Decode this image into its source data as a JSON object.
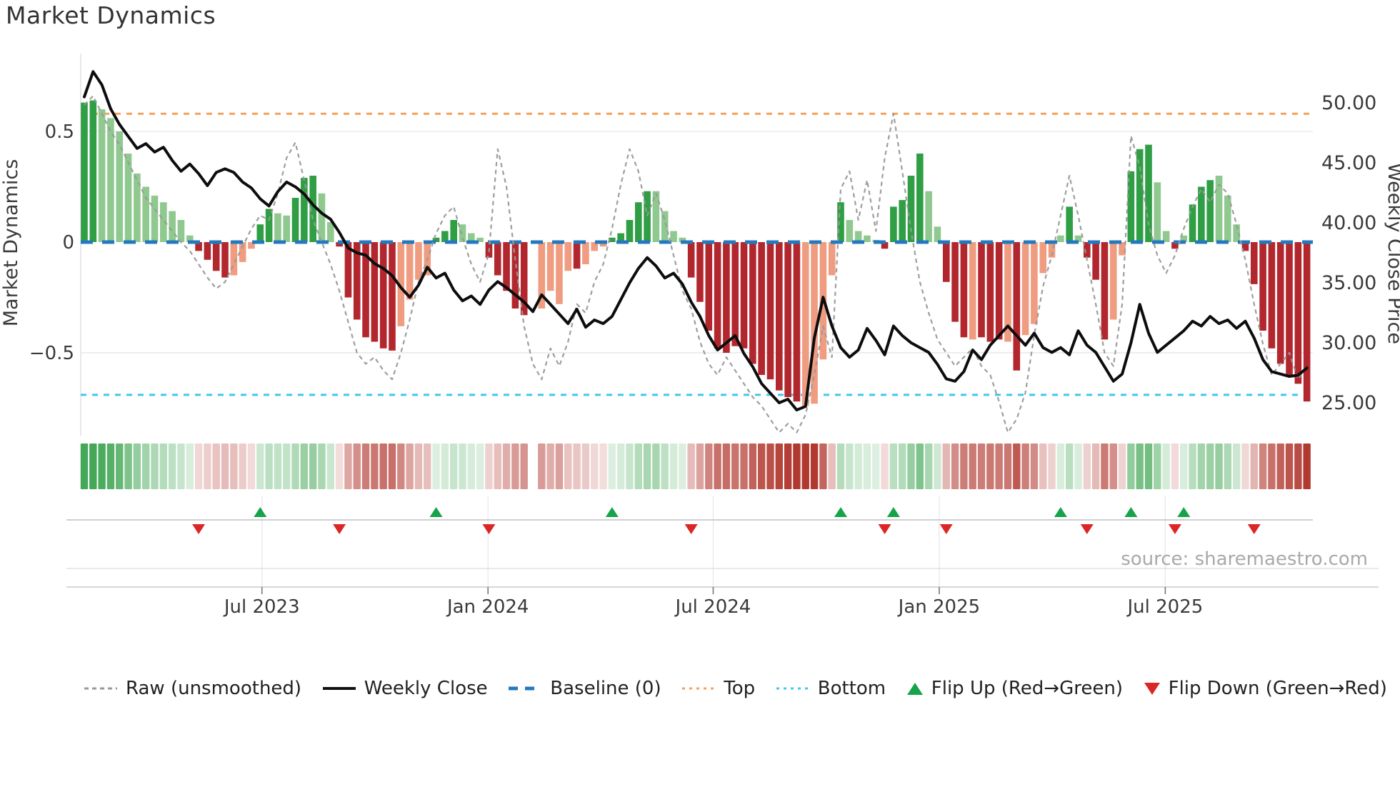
{
  "title": "Market Dynamics",
  "source": "source: sharemaestro.com",
  "axes": {
    "left_label": "Market Dynamics",
    "left_ticks": [
      "0.5",
      "0",
      "−0.5"
    ],
    "right_label": "Weekly Close Price",
    "right_ticks": [
      "50.00",
      "45.00",
      "40.00",
      "35.00",
      "30.00",
      "25.00"
    ],
    "x_ticks": [
      "Jul 2023",
      "Jan 2024",
      "Jul 2024",
      "Jan 2025",
      "Jul 2025"
    ]
  },
  "colors": {
    "bar_green_dark": "#2f9e44",
    "bar_green_light": "#8fc98f",
    "bar_red_dark": "#b2272e",
    "bar_red_light": "#ef9c80",
    "baseline_blue": "#2478bd",
    "top_orange": "#f2a25c",
    "bottom_cyan": "#41c7ec",
    "raw_gray": "#999999",
    "close_black": "#0d0d0d",
    "flip_up_green": "#17a34a",
    "flip_down_red": "#dc2626",
    "axis_text": "#3a3a3a",
    "source_gray": "#a9a9a9"
  },
  "legend": {
    "items": [
      {
        "id": "raw",
        "label": "Raw (unsmoothed)",
        "type": "dash",
        "color": "#999999"
      },
      {
        "id": "close",
        "label": "Weekly Close",
        "type": "solid",
        "color": "#111111"
      },
      {
        "id": "baseline",
        "label": "Baseline (0)",
        "type": "longdash",
        "color": "#2478bd"
      },
      {
        "id": "top",
        "label": "Top",
        "type": "dot",
        "color": "#f2a25c"
      },
      {
        "id": "bottom",
        "label": "Bottom",
        "type": "dot",
        "color": "#41c7ec"
      },
      {
        "id": "flip-up",
        "label": "Flip Up (Red→Green)",
        "type": "tri-up",
        "color": "#17a34a"
      },
      {
        "id": "flip-down",
        "label": "Flip Down (Green→Red)",
        "type": "tri-down",
        "color": "#dc2626"
      }
    ]
  },
  "chart_data": {
    "type": "combo (bars + line + dashed raw line + heatmap strip + flip markers)",
    "weeks": 140,
    "ylim_left": [
      -0.9,
      0.85
    ],
    "ylim_right": [
      25,
      50
    ],
    "baseline": 0,
    "top_line": 0.58,
    "bottom_line": -0.69,
    "x_tick_weeks": [
      20.2,
      45.9,
      71.5,
      97.2,
      122.9
    ],
    "osc": [
      0.63,
      0.64,
      0.6,
      0.56,
      0.5,
      0.4,
      0.31,
      0.25,
      0.21,
      0.18,
      0.14,
      0.1,
      0.03,
      -0.04,
      -0.08,
      -0.13,
      -0.16,
      -0.15,
      -0.09,
      -0.03,
      0.08,
      0.15,
      0.13,
      0.12,
      0.2,
      0.29,
      0.3,
      0.22,
      0.09,
      -0.02,
      -0.25,
      -0.35,
      -0.43,
      -0.45,
      -0.48,
      -0.49,
      -0.38,
      -0.26,
      -0.17,
      -0.15,
      0.02,
      0.05,
      0.1,
      0.08,
      0.04,
      0.02,
      -0.07,
      -0.15,
      -0.22,
      -0.3,
      -0.33,
      null,
      -0.3,
      -0.22,
      -0.28,
      -0.13,
      -0.12,
      -0.1,
      -0.04,
      -0.02,
      0.02,
      0.04,
      0.1,
      0.18,
      0.23,
      0.23,
      0.14,
      0.05,
      0.02,
      -0.16,
      -0.27,
      -0.4,
      -0.48,
      -0.5,
      -0.47,
      -0.48,
      -0.55,
      -0.6,
      -0.62,
      -0.67,
      -0.7,
      -0.72,
      -0.74,
      -0.73,
      -0.53,
      -0.15,
      0.18,
      0.1,
      0.05,
      0.03,
      0.01,
      -0.03,
      0.16,
      0.19,
      0.3,
      0.4,
      0.23,
      0.07,
      -0.18,
      -0.36,
      -0.43,
      -0.44,
      -0.43,
      -0.45,
      -0.44,
      -0.45,
      -0.58,
      -0.42,
      -0.37,
      -0.14,
      -0.07,
      0.03,
      0.16,
      0.03,
      -0.07,
      -0.17,
      -0.44,
      -0.35,
      -0.06,
      0.32,
      0.42,
      0.44,
      0.27,
      0.05,
      -0.03,
      0.03,
      0.17,
      0.25,
      0.28,
      0.3,
      0.21,
      0.08,
      -0.04,
      -0.19,
      -0.4,
      -0.48,
      -0.55,
      -0.6,
      -0.64,
      -0.72
    ],
    "shade": [
      "d",
      "d",
      "l",
      "l",
      "l",
      "l",
      "l",
      "l",
      "l",
      "l",
      "l",
      "l",
      "l",
      "d",
      "d",
      "d",
      "d",
      "l",
      "l",
      "l",
      "d",
      "d",
      "l",
      "l",
      "d",
      "d",
      "d",
      "l",
      "l",
      "d",
      "d",
      "d",
      "d",
      "d",
      "d",
      "d",
      "l",
      "l",
      "l",
      "l",
      "d",
      "d",
      "d",
      "l",
      "l",
      "l",
      "d",
      "d",
      "d",
      "d",
      "d",
      null,
      "l",
      "l",
      "l",
      "l",
      "d",
      "l",
      "l",
      "l",
      "d",
      "d",
      "d",
      "d",
      "d",
      "l",
      "l",
      "l",
      "l",
      "d",
      "d",
      "d",
      "d",
      "d",
      "d",
      "d",
      "d",
      "d",
      "d",
      "d",
      "d",
      "d",
      "l",
      "l",
      "l",
      "l",
      "d",
      "l",
      "l",
      "l",
      "l",
      "d",
      "d",
      "d",
      "d",
      "d",
      "l",
      "l",
      "d",
      "d",
      "d",
      "l",
      "d",
      "d",
      "d",
      "l",
      "d",
      "l",
      "l",
      "l",
      "l",
      "l",
      "d",
      "l",
      "d",
      "d",
      "d",
      "l",
      "l",
      "d",
      "d",
      "d",
      "l",
      "l",
      "d",
      "l",
      "d",
      "d",
      "d",
      "l",
      "l",
      "l",
      "d",
      "d",
      "d",
      "d",
      "d",
      "d",
      "d",
      "d"
    ],
    "raw": [
      0.62,
      0.66,
      0.58,
      0.5,
      0.44,
      0.36,
      0.28,
      0.2,
      0.15,
      0.1,
      0.05,
      0.0,
      -0.04,
      -0.1,
      -0.16,
      -0.21,
      -0.18,
      -0.1,
      -0.02,
      0.06,
      0.12,
      0.1,
      0.22,
      0.38,
      0.45,
      0.28,
      0.1,
      0.0,
      -0.1,
      -0.22,
      -0.36,
      -0.5,
      -0.55,
      -0.52,
      -0.58,
      -0.62,
      -0.5,
      -0.35,
      -0.18,
      -0.08,
      0.04,
      0.12,
      0.16,
      0.02,
      -0.1,
      -0.18,
      -0.05,
      0.42,
      0.25,
      -0.08,
      -0.38,
      -0.55,
      -0.62,
      -0.48,
      -0.56,
      -0.45,
      -0.28,
      -0.32,
      -0.18,
      -0.1,
      0.06,
      0.26,
      0.42,
      0.32,
      0.12,
      0.22,
      0.1,
      -0.06,
      -0.22,
      -0.3,
      -0.45,
      -0.55,
      -0.6,
      -0.52,
      -0.58,
      -0.64,
      -0.7,
      -0.74,
      -0.8,
      -0.86,
      -0.82,
      -0.86,
      -0.78,
      -0.6,
      -0.38,
      -0.52,
      0.24,
      0.32,
      0.1,
      0.28,
      0.05,
      0.38,
      0.58,
      0.32,
      0.05,
      -0.18,
      -0.32,
      -0.44,
      -0.5,
      -0.56,
      -0.52,
      -0.48,
      -0.56,
      -0.6,
      -0.72,
      -0.86,
      -0.8,
      -0.68,
      -0.42,
      -0.2,
      -0.06,
      0.12,
      0.3,
      0.12,
      -0.08,
      -0.28,
      -0.5,
      -0.56,
      -0.28,
      0.48,
      0.34,
      0.08,
      -0.06,
      -0.14,
      -0.06,
      0.06,
      0.16,
      0.24,
      0.18,
      0.26,
      0.22,
      0.08,
      -0.08,
      -0.28,
      -0.46,
      -0.6,
      -0.55,
      -0.5,
      -0.62,
      -0.56
    ],
    "close": [
      50.5,
      52.6,
      51.5,
      49.5,
      48.2,
      47.2,
      46.2,
      46.6,
      45.9,
      46.3,
      45.2,
      44.3,
      44.9,
      44.1,
      43.1,
      44.2,
      44.5,
      44.2,
      43.4,
      42.9,
      42.0,
      41.4,
      42.6,
      43.4,
      43.0,
      42.4,
      41.5,
      40.8,
      40.3,
      39.2,
      37.9,
      37.5,
      37.3,
      36.6,
      36.2,
      35.6,
      34.6,
      33.8,
      34.8,
      36.3,
      35.4,
      35.8,
      34.4,
      33.5,
      33.9,
      33.2,
      34.4,
      35.1,
      34.6,
      34.0,
      33.4,
      32.6,
      34.0,
      33.2,
      32.4,
      31.6,
      32.8,
      31.3,
      31.9,
      31.6,
      32.2,
      33.6,
      35.0,
      36.2,
      37.1,
      36.4,
      35.4,
      35.8,
      34.9,
      33.4,
      32.2,
      30.6,
      29.4,
      30.0,
      30.6,
      29.1,
      28.0,
      26.6,
      25.8,
      25.0,
      25.3,
      24.4,
      24.7,
      30.4,
      33.8,
      31.4,
      29.6,
      28.8,
      29.4,
      31.2,
      30.2,
      29.0,
      31.4,
      30.6,
      30.0,
      29.6,
      29.2,
      28.2,
      27.0,
      26.8,
      27.6,
      29.4,
      28.6,
      29.8,
      30.6,
      31.4,
      30.6,
      29.8,
      30.8,
      29.6,
      29.2,
      29.6,
      29.0,
      31.0,
      29.8,
      29.2,
      28.0,
      26.8,
      27.4,
      30.0,
      33.2,
      30.8,
      29.2,
      29.8,
      30.4,
      31.0,
      31.8,
      31.4,
      32.2,
      31.6,
      31.9,
      31.2,
      31.8,
      30.4,
      28.6,
      27.6,
      27.4,
      27.2,
      27.3,
      27.9
    ],
    "flip_up_weeks": [
      20,
      40,
      60,
      86,
      92,
      111,
      119,
      125
    ],
    "flip_down_weeks": [
      13,
      29,
      46,
      69,
      91,
      98,
      114,
      124,
      133
    ],
    "heatmap": "diverging red-green strip derived from osc values; null week 51 renders as gap"
  }
}
